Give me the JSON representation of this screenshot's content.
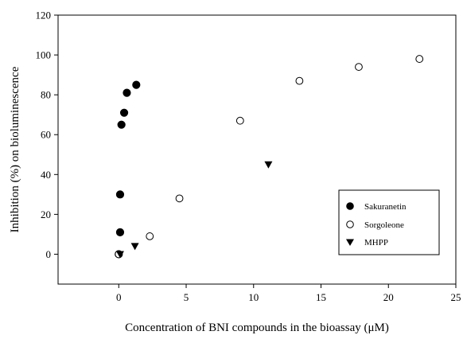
{
  "chart_data": {
    "type": "scatter",
    "title": "",
    "xlabel": "Concentration of BNI compounds in the bioassay (μM)",
    "ylabel": "Inhibition (%) on bioluminescence",
    "xlim": [
      -4.5,
      25
    ],
    "ylim": [
      -15,
      120
    ],
    "xticks": [
      0,
      5,
      10,
      15,
      20,
      25
    ],
    "yticks": [
      0,
      20,
      40,
      60,
      80,
      100,
      120
    ],
    "grid": false,
    "legend_position": "right",
    "series": [
      {
        "name": "Sakuranetin",
        "marker": "filled-circle",
        "color": "#000000",
        "x": [
          0.0,
          0.1,
          0.1,
          0.2,
          0.4,
          0.6,
          1.3
        ],
        "y": [
          0,
          11,
          30,
          65,
          71,
          81,
          85
        ]
      },
      {
        "name": "Sorgoleone",
        "marker": "open-circle",
        "color": "#000000",
        "x": [
          0.0,
          2.3,
          4.5,
          9.0,
          13.4,
          17.8,
          22.3
        ],
        "y": [
          0,
          9,
          28,
          67,
          87,
          94,
          98
        ]
      },
      {
        "name": "MHPP",
        "marker": "filled-triangle-down",
        "color": "#000000",
        "x": [
          0.1,
          1.2,
          11.1
        ],
        "y": [
          0,
          4,
          45
        ]
      }
    ]
  }
}
